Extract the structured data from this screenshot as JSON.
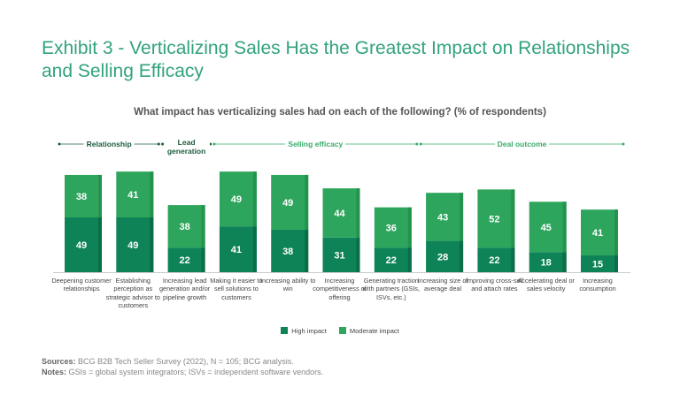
{
  "chart_data": {
    "type": "bar",
    "stacked": true,
    "title": "Exhibit 3 - Verticalizing Sales Has the Greatest Impact on Relationships and Selling Efficacy",
    "subtitle": "What impact has verticalizing sales had on each of the following? (% of respondents)",
    "categories": [
      "Deepening customer relationships",
      "Establishing perception as strategic advisor to customers",
      "Increasing lead generation and/or pipeline growth",
      "Making it easier to sell solutions to customers",
      "Increasing ability to win",
      "Increasing competitiveness of offering",
      "Generating traction with partners (GSIs, ISVs, etc.)",
      "Increasing size of average deal",
      "Improving cross-sell and attach rates",
      "Accelerating deal or sales velocity",
      "Increasing consumption"
    ],
    "series": [
      {
        "name": "High impact",
        "color": "#0e8357",
        "values": [
          49,
          49,
          22,
          41,
          38,
          31,
          22,
          28,
          22,
          18,
          15
        ]
      },
      {
        "name": "Moderate impact",
        "color": "#2ea55c",
        "values": [
          38,
          41,
          38,
          49,
          49,
          44,
          36,
          43,
          52,
          45,
          41
        ]
      }
    ],
    "groups": [
      {
        "label": "Relationship",
        "color": "#1d5c3c",
        "from": 0,
        "to": 1
      },
      {
        "label": "Lead generation",
        "color": "#1d5c3c",
        "from": 2,
        "to": 2
      },
      {
        "label": "Selling efficacy",
        "color": "#36ad6a",
        "from": 3,
        "to": 6
      },
      {
        "label": "Deal outcome",
        "color": "#36ad6a",
        "from": 7,
        "to": 10
      }
    ],
    "legend_position": "bottom",
    "grid": false
  },
  "notes": {
    "sources_label": "Sources:",
    "sources": "BCG B2B Tech Seller Survey (2022), N = 105; BCG analysis.",
    "notes_label": "Notes:",
    "notes": "GSIs = global system integrators; ISVs = independent software vendors."
  }
}
